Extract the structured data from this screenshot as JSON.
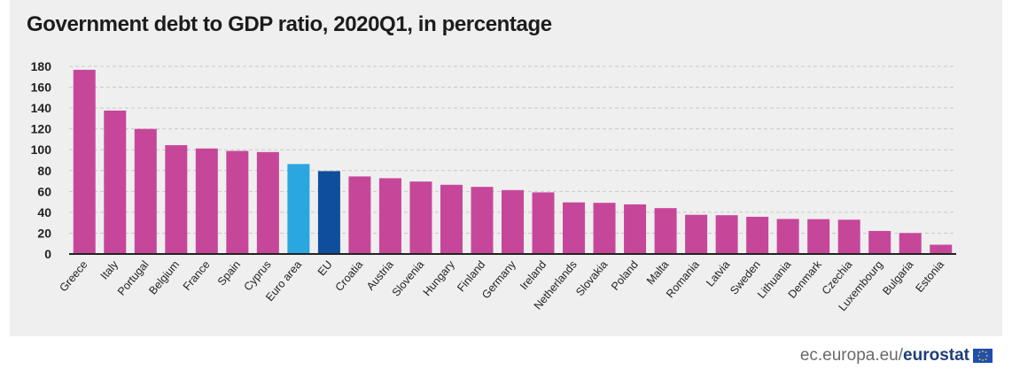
{
  "chart_data": {
    "type": "bar",
    "title": "Government debt to GDP ratio, 2020Q1, in percentage",
    "categories": [
      "Greece",
      "Italy",
      "Portugal",
      "Belgium",
      "France",
      "Spain",
      "Cyprus",
      "Euro area",
      "EU",
      "Croatia",
      "Austria",
      "Slovenia",
      "Hungary",
      "Finland",
      "Germany",
      "Ireland",
      "Netherlands",
      "Slovakia",
      "Poland",
      "Malta",
      "Romania",
      "Latvia",
      "Sweden",
      "Lithuania",
      "Denmark",
      "Czechia",
      "Luxembourg",
      "Bulgaria",
      "Estonia"
    ],
    "values": [
      176.7,
      137.6,
      120.0,
      104.4,
      101.2,
      98.9,
      97.8,
      86.3,
      79.5,
      74.4,
      72.7,
      69.5,
      66.4,
      64.4,
      61.3,
      59.1,
      49.5,
      49.1,
      47.6,
      44.0,
      37.6,
      37.2,
      35.7,
      33.6,
      33.4,
      32.9,
      22.1,
      20.1,
      8.9
    ],
    "colors": [
      "#c6479a",
      "#c6479a",
      "#c6479a",
      "#c6479a",
      "#c6479a",
      "#c6479a",
      "#c6479a",
      "#2aa6e1",
      "#0f4e9c",
      "#c6479a",
      "#c6479a",
      "#c6479a",
      "#c6479a",
      "#c6479a",
      "#c6479a",
      "#c6479a",
      "#c6479a",
      "#c6479a",
      "#c6479a",
      "#c6479a",
      "#c6479a",
      "#c6479a",
      "#c6479a",
      "#c6479a",
      "#c6479a",
      "#c6479a",
      "#c6479a",
      "#c6479a",
      "#c6479a"
    ],
    "yticks": [
      "0",
      "20",
      "40",
      "60",
      "80",
      "100",
      "120",
      "140",
      "160",
      "180"
    ],
    "ylim": [
      0,
      180
    ],
    "grid": true,
    "xlabel": "",
    "ylabel": ""
  },
  "source": {
    "domain": "ec.europa.eu/",
    "brand": "eurostat"
  },
  "icons": {
    "logo": "eu-flag-icon"
  }
}
